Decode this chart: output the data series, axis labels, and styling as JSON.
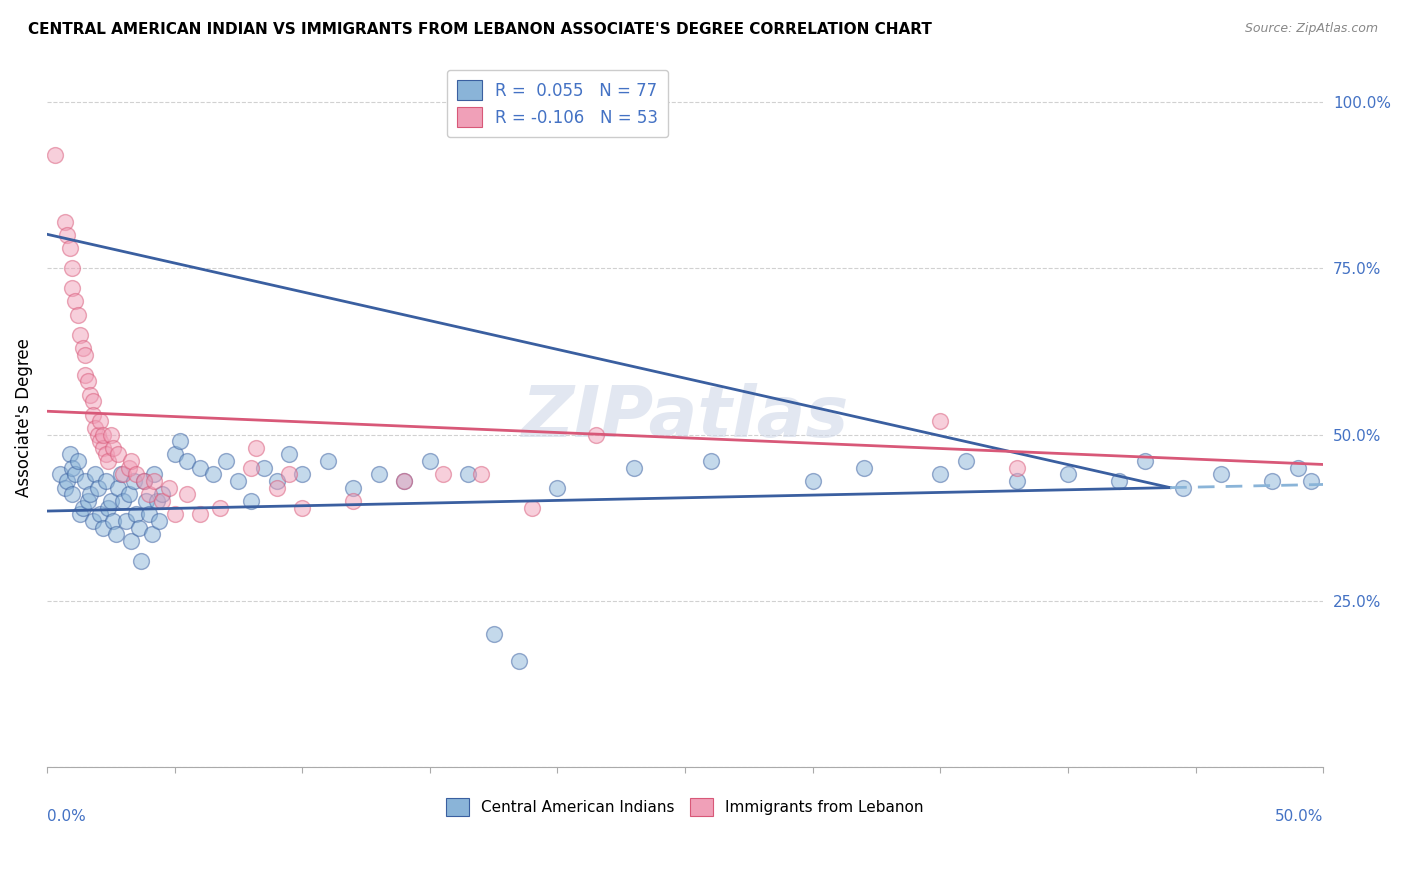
{
  "title": "CENTRAL AMERICAN INDIAN VS IMMIGRANTS FROM LEBANON ASSOCIATE'S DEGREE CORRELATION CHART",
  "source": "Source: ZipAtlas.com",
  "ylabel": "Associate's Degree",
  "ytick_vals": [
    0.0,
    0.25,
    0.5,
    0.75,
    1.0
  ],
  "ytick_labels": [
    "",
    "25.0%",
    "50.0%",
    "75.0%",
    "100.0%"
  ],
  "legend1_label": "R =  0.055   N = 77",
  "legend2_label": "R = -0.106   N = 53",
  "blue_color": "#8ab4d8",
  "pink_color": "#f0a0b8",
  "trendline_blue_solid": "#3a5fa0",
  "trendline_blue_dashed": "#8ab4d8",
  "trendline_pink": "#d85878",
  "watermark": "ZIPatlas",
  "xmin": 0.0,
  "xmax": 0.5,
  "ymin": 0.0,
  "ymax": 1.05,
  "trendline_blue_x0": 0.0,
  "trendline_blue_y0": 0.385,
  "trendline_blue_x1": 0.5,
  "trendline_blue_y1": 0.425,
  "trendline_blue_solid_end": 0.44,
  "trendline_pink_x0": 0.0,
  "trendline_pink_y0": 0.535,
  "trendline_pink_x1": 0.5,
  "trendline_pink_y1": 0.455,
  "blue_points": [
    [
      0.005,
      0.44
    ],
    [
      0.007,
      0.42
    ],
    [
      0.008,
      0.43
    ],
    [
      0.009,
      0.47
    ],
    [
      0.01,
      0.45
    ],
    [
      0.01,
      0.41
    ],
    [
      0.011,
      0.44
    ],
    [
      0.012,
      0.46
    ],
    [
      0.013,
      0.38
    ],
    [
      0.014,
      0.39
    ],
    [
      0.015,
      0.43
    ],
    [
      0.016,
      0.4
    ],
    [
      0.017,
      0.41
    ],
    [
      0.018,
      0.37
    ],
    [
      0.019,
      0.44
    ],
    [
      0.02,
      0.42
    ],
    [
      0.021,
      0.38
    ],
    [
      0.022,
      0.36
    ],
    [
      0.023,
      0.43
    ],
    [
      0.024,
      0.39
    ],
    [
      0.025,
      0.4
    ],
    [
      0.026,
      0.37
    ],
    [
      0.027,
      0.35
    ],
    [
      0.028,
      0.42
    ],
    [
      0.029,
      0.44
    ],
    [
      0.03,
      0.4
    ],
    [
      0.031,
      0.37
    ],
    [
      0.032,
      0.41
    ],
    [
      0.033,
      0.34
    ],
    [
      0.034,
      0.43
    ],
    [
      0.035,
      0.38
    ],
    [
      0.036,
      0.36
    ],
    [
      0.037,
      0.31
    ],
    [
      0.038,
      0.43
    ],
    [
      0.039,
      0.4
    ],
    [
      0.04,
      0.38
    ],
    [
      0.041,
      0.35
    ],
    [
      0.042,
      0.44
    ],
    [
      0.043,
      0.4
    ],
    [
      0.044,
      0.37
    ],
    [
      0.045,
      0.41
    ],
    [
      0.05,
      0.47
    ],
    [
      0.052,
      0.49
    ],
    [
      0.055,
      0.46
    ],
    [
      0.06,
      0.45
    ],
    [
      0.065,
      0.44
    ],
    [
      0.07,
      0.46
    ],
    [
      0.075,
      0.43
    ],
    [
      0.08,
      0.4
    ],
    [
      0.085,
      0.45
    ],
    [
      0.09,
      0.43
    ],
    [
      0.095,
      0.47
    ],
    [
      0.1,
      0.44
    ],
    [
      0.11,
      0.46
    ],
    [
      0.12,
      0.42
    ],
    [
      0.13,
      0.44
    ],
    [
      0.14,
      0.43
    ],
    [
      0.15,
      0.46
    ],
    [
      0.165,
      0.44
    ],
    [
      0.175,
      0.2
    ],
    [
      0.185,
      0.16
    ],
    [
      0.2,
      0.42
    ],
    [
      0.23,
      0.45
    ],
    [
      0.26,
      0.46
    ],
    [
      0.3,
      0.43
    ],
    [
      0.32,
      0.45
    ],
    [
      0.35,
      0.44
    ],
    [
      0.36,
      0.46
    ],
    [
      0.38,
      0.43
    ],
    [
      0.4,
      0.44
    ],
    [
      0.42,
      0.43
    ],
    [
      0.43,
      0.46
    ],
    [
      0.445,
      0.42
    ],
    [
      0.46,
      0.44
    ],
    [
      0.48,
      0.43
    ],
    [
      0.49,
      0.45
    ],
    [
      0.495,
      0.43
    ]
  ],
  "pink_points": [
    [
      0.003,
      0.92
    ],
    [
      0.007,
      0.82
    ],
    [
      0.008,
      0.8
    ],
    [
      0.009,
      0.78
    ],
    [
      0.01,
      0.75
    ],
    [
      0.01,
      0.72
    ],
    [
      0.011,
      0.7
    ],
    [
      0.012,
      0.68
    ],
    [
      0.013,
      0.65
    ],
    [
      0.014,
      0.63
    ],
    [
      0.015,
      0.62
    ],
    [
      0.015,
      0.59
    ],
    [
      0.016,
      0.58
    ],
    [
      0.017,
      0.56
    ],
    [
      0.018,
      0.55
    ],
    [
      0.018,
      0.53
    ],
    [
      0.019,
      0.51
    ],
    [
      0.02,
      0.5
    ],
    [
      0.021,
      0.49
    ],
    [
      0.021,
      0.52
    ],
    [
      0.022,
      0.48
    ],
    [
      0.022,
      0.5
    ],
    [
      0.023,
      0.47
    ],
    [
      0.024,
      0.46
    ],
    [
      0.025,
      0.5
    ],
    [
      0.026,
      0.48
    ],
    [
      0.028,
      0.47
    ],
    [
      0.03,
      0.44
    ],
    [
      0.032,
      0.45
    ],
    [
      0.033,
      0.46
    ],
    [
      0.035,
      0.44
    ],
    [
      0.038,
      0.43
    ],
    [
      0.04,
      0.41
    ],
    [
      0.042,
      0.43
    ],
    [
      0.045,
      0.4
    ],
    [
      0.048,
      0.42
    ],
    [
      0.05,
      0.38
    ],
    [
      0.055,
      0.41
    ],
    [
      0.06,
      0.38
    ],
    [
      0.068,
      0.39
    ],
    [
      0.08,
      0.45
    ],
    [
      0.082,
      0.48
    ],
    [
      0.09,
      0.42
    ],
    [
      0.095,
      0.44
    ],
    [
      0.1,
      0.39
    ],
    [
      0.12,
      0.4
    ],
    [
      0.14,
      0.43
    ],
    [
      0.155,
      0.44
    ],
    [
      0.17,
      0.44
    ],
    [
      0.19,
      0.39
    ],
    [
      0.215,
      0.5
    ],
    [
      0.35,
      0.52
    ],
    [
      0.38,
      0.45
    ]
  ]
}
